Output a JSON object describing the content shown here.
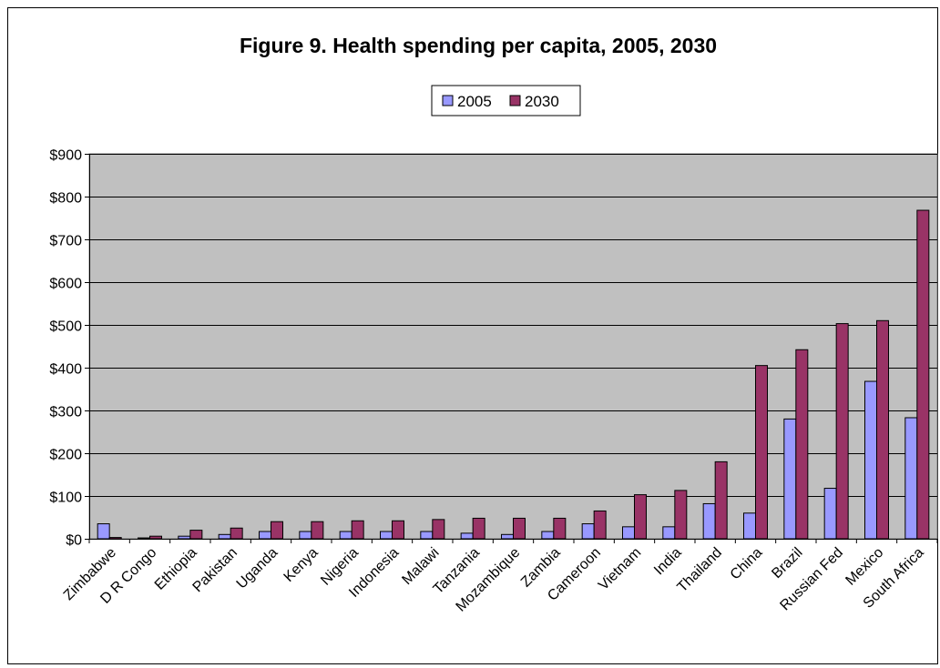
{
  "chart_data": {
    "type": "bar",
    "title": "Figure 9. Health spending per capita, 2005, 2030",
    "xlabel": "",
    "ylabel": "",
    "ylim": [
      0,
      900
    ],
    "yticks": [
      "$0",
      "$100",
      "$200",
      "$300",
      "$400",
      "$500",
      "$600",
      "$700",
      "$800",
      "$900"
    ],
    "grid": true,
    "legend_position": "top-center",
    "categories": [
      "Zimbabwe",
      "D R Congo",
      "Ethiopia",
      "Pakistan",
      "Uganda",
      "Kenya",
      "Nigeria",
      "Indonesia",
      "Malawi",
      "Tanzania",
      "Mozambique",
      "Zambia",
      "Cameroon",
      "Vietnam",
      "India",
      "Thailand",
      "China",
      "Brazil",
      "Russian Fed",
      "Mexico",
      "South Africa"
    ],
    "series": [
      {
        "name": "2005",
        "color": "#9999ff",
        "values": [
          35,
          2,
          6,
          10,
          17,
          17,
          17,
          17,
          17,
          13,
          10,
          17,
          35,
          28,
          28,
          82,
          60,
          280,
          118,
          368,
          283
        ]
      },
      {
        "name": "2030",
        "color": "#993366",
        "values": [
          3,
          6,
          20,
          25,
          40,
          40,
          42,
          42,
          45,
          48,
          48,
          48,
          65,
          103,
          113,
          180,
          405,
          442,
          503,
          510,
          768
        ]
      }
    ],
    "plot_background": "#c0c0c0"
  }
}
